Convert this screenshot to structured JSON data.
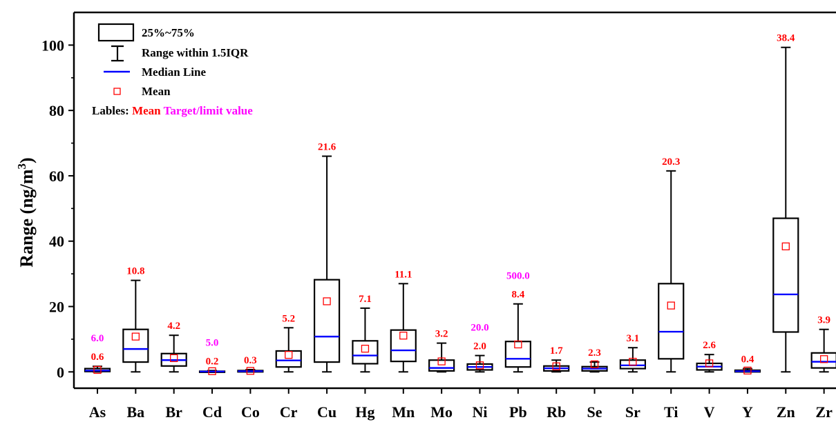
{
  "chart_data": {
    "type": "box",
    "ylabel": "Range (ng/m",
    "ylabel_sup": "3",
    "ylabel_close": ")",
    "ylim": [
      -5,
      110
    ],
    "yticks": [
      0,
      20,
      40,
      60,
      80,
      100
    ],
    "colors": {
      "box": "#000000",
      "median": "#0000ff",
      "mean": "#ff0000",
      "limit": "#ff00ff"
    },
    "categories": [
      "As",
      "Ba",
      "Br",
      "Cd",
      "Co",
      "Cr",
      "Cu",
      "Hg",
      "Mn",
      "Mo",
      "Ni",
      "Pb",
      "Rb",
      "Se",
      "Sr",
      "Ti",
      "V",
      "Y",
      "Zn",
      "Zr"
    ],
    "boxes": [
      {
        "name": "As",
        "min": 0,
        "q1": 0.1,
        "median": 0.4,
        "q3": 1.0,
        "max": 1.7,
        "mean": 0.6,
        "mean_label": "0.6",
        "limit_label": "6.0"
      },
      {
        "name": "Ba",
        "min": 0,
        "q1": 3.0,
        "median": 7.0,
        "q3": 13.0,
        "max": 28.0,
        "mean": 10.8,
        "mean_label": "10.8",
        "limit_label": ""
      },
      {
        "name": "Br",
        "min": 0,
        "q1": 1.8,
        "median": 3.6,
        "q3": 5.6,
        "max": 11.2,
        "mean": 4.2,
        "mean_label": "4.2",
        "limit_label": ""
      },
      {
        "name": "Cd",
        "min": 0,
        "q1": 0,
        "median": 0.1,
        "q3": 0.2,
        "max": 0.4,
        "mean": 0.2,
        "mean_label": "0.2",
        "limit_label": "5.0"
      },
      {
        "name": "Co",
        "min": 0,
        "q1": 0,
        "median": 0.2,
        "q3": 0.4,
        "max": 0.7,
        "mean": 0.3,
        "mean_label": "0.3",
        "limit_label": ""
      },
      {
        "name": "Cr",
        "min": 0,
        "q1": 1.5,
        "median": 3.5,
        "q3": 6.4,
        "max": 13.5,
        "mean": 5.2,
        "mean_label": "5.2",
        "limit_label": ""
      },
      {
        "name": "Cu",
        "min": 0,
        "q1": 3.0,
        "median": 10.8,
        "q3": 28.2,
        "max": 66.0,
        "mean": 21.6,
        "mean_label": "21.6",
        "limit_label": ""
      },
      {
        "name": "Hg",
        "min": 0,
        "q1": 2.5,
        "median": 5.0,
        "q3": 9.5,
        "max": 19.5,
        "mean": 7.1,
        "mean_label": "7.1",
        "limit_label": ""
      },
      {
        "name": "Mn",
        "min": 0,
        "q1": 3.2,
        "median": 6.6,
        "q3": 12.8,
        "max": 27.0,
        "mean": 11.1,
        "mean_label": "11.1",
        "limit_label": ""
      },
      {
        "name": "Mo",
        "min": 0,
        "q1": 0.3,
        "median": 1.2,
        "q3": 3.6,
        "max": 8.8,
        "mean": 3.2,
        "mean_label": "3.2",
        "limit_label": ""
      },
      {
        "name": "Ni",
        "min": 0,
        "q1": 0.6,
        "median": 1.5,
        "q3": 2.4,
        "max": 5.0,
        "mean": 2.0,
        "mean_label": "2.0",
        "limit_label": "20.0"
      },
      {
        "name": "Pb",
        "min": 0,
        "q1": 1.5,
        "median": 4.0,
        "q3": 9.3,
        "max": 20.8,
        "mean": 8.4,
        "mean_label": "8.4",
        "limit_label": "500.0"
      },
      {
        "name": "Rb",
        "min": 0,
        "q1": 0.3,
        "median": 1.1,
        "q3": 1.8,
        "max": 3.6,
        "mean": 1.7,
        "mean_label": "1.7",
        "limit_label": ""
      },
      {
        "name": "Se",
        "min": 0,
        "q1": 0.3,
        "median": 1.0,
        "q3": 1.6,
        "max": 3.0,
        "mean": 2.3,
        "mean_label": "2.3",
        "limit_label": ""
      },
      {
        "name": "Sr",
        "min": 0,
        "q1": 1.0,
        "median": 2.0,
        "q3": 3.6,
        "max": 7.4,
        "mean": 3.1,
        "mean_label": "3.1",
        "limit_label": ""
      },
      {
        "name": "Ti",
        "min": 0,
        "q1": 4.0,
        "median": 12.3,
        "q3": 27.0,
        "max": 61.5,
        "mean": 20.3,
        "mean_label": "20.3",
        "limit_label": ""
      },
      {
        "name": "V",
        "min": 0,
        "q1": 0.6,
        "median": 1.6,
        "q3": 2.6,
        "max": 5.3,
        "mean": 2.6,
        "mean_label": "2.6",
        "limit_label": ""
      },
      {
        "name": "Y",
        "min": 0,
        "q1": 0,
        "median": 0.2,
        "q3": 0.5,
        "max": 1.0,
        "mean": 0.4,
        "mean_label": "0.4",
        "limit_label": ""
      },
      {
        "name": "Zn",
        "min": 0,
        "q1": 12.2,
        "median": 23.7,
        "q3": 47.0,
        "max": 99.3,
        "mean": 38.4,
        "mean_label": "38.4",
        "limit_label": ""
      },
      {
        "name": "Zr",
        "min": 0,
        "q1": 1.2,
        "median": 3.1,
        "q3": 5.8,
        "max": 13.0,
        "mean": 3.9,
        "mean_label": "3.9",
        "limit_label": ""
      }
    ],
    "legend": {
      "box": "25%~75%",
      "whisker": "Range within 1.5IQR",
      "median": "Median Line",
      "mean": "Mean",
      "labels_prefix": "Lables: ",
      "labels_mean": "Mean",
      "labels_limit": "Target/limit value"
    }
  }
}
